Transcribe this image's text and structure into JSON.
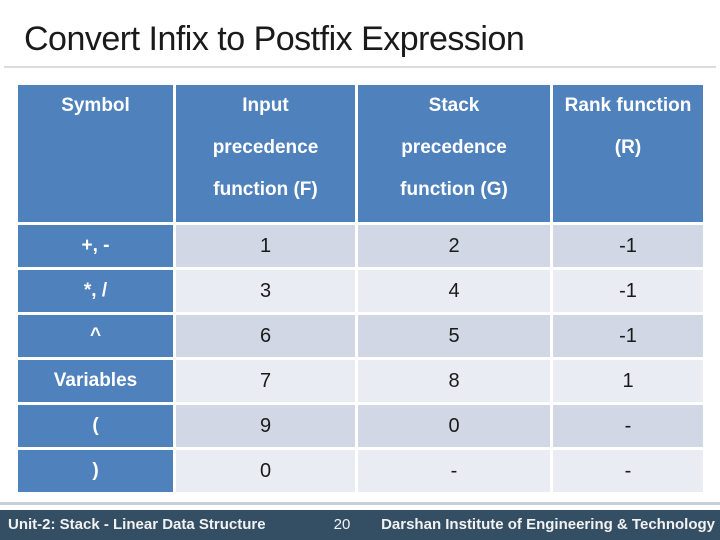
{
  "slide": {
    "title": "Convert Infix to Postfix Expression"
  },
  "table": {
    "columns": [
      {
        "lines": [
          "Symbol"
        ]
      },
      {
        "lines": [
          "Input",
          "precedence",
          "function (F)"
        ]
      },
      {
        "lines": [
          "Stack",
          "precedence",
          "function (G)"
        ]
      },
      {
        "lines": [
          "Rank function",
          "(R)"
        ]
      }
    ],
    "rows": [
      {
        "symbol": "+, -",
        "input_f": "1",
        "stack_g": "2",
        "rank_r": "-1"
      },
      {
        "symbol": "*, /",
        "input_f": "3",
        "stack_g": "4",
        "rank_r": "-1"
      },
      {
        "symbol": "^",
        "input_f": "6",
        "stack_g": "5",
        "rank_r": "-1"
      },
      {
        "symbol": "Variables",
        "input_f": "7",
        "stack_g": "8",
        "rank_r": "1"
      },
      {
        "symbol": "(",
        "input_f": "9",
        "stack_g": "0",
        "rank_r": "-"
      },
      {
        "symbol": ")",
        "input_f": "0",
        "stack_g": "-",
        "rank_r": "-"
      }
    ]
  },
  "footer": {
    "left": "Unit-2: Stack - Linear Data Structure",
    "page_number": "20",
    "right": "Darshan Institute of Engineering & Technology"
  },
  "colors": {
    "header_blue": "#4f81bd",
    "band_dark": "#d2d7e5",
    "band_light": "#eaecf4",
    "footer_bg": "#344f63",
    "title_text": "#1a1a1a"
  }
}
